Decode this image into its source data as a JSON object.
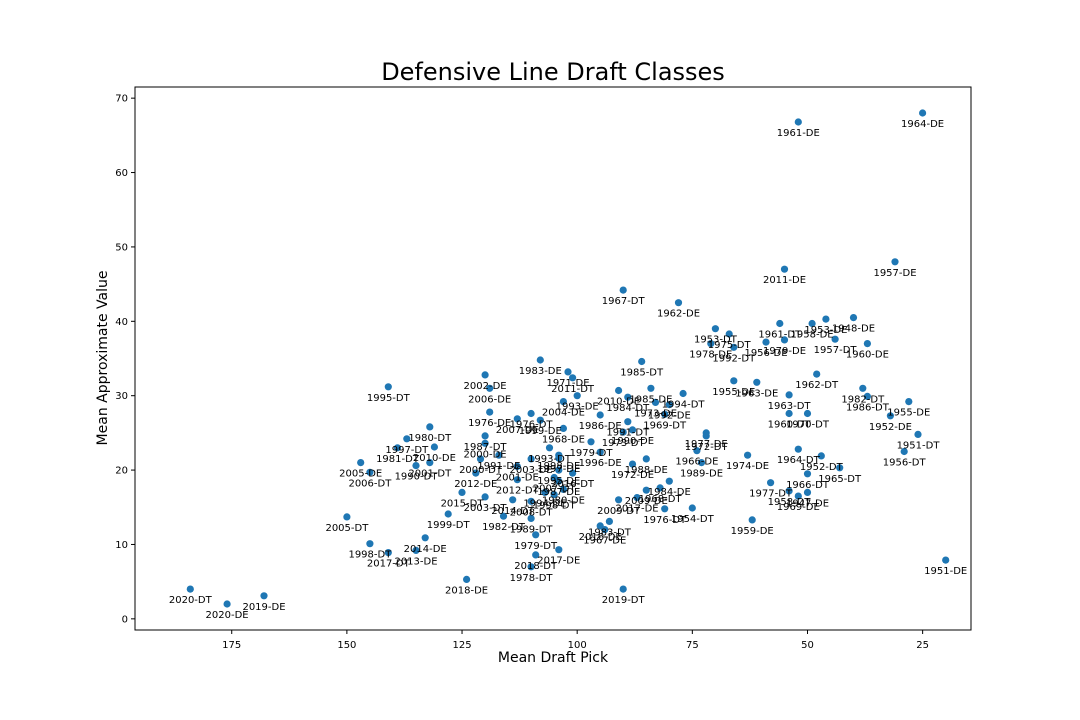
{
  "chart_data": {
    "type": "scatter",
    "title": "Defensive Line Draft Classes",
    "xlabel": "Mean Draft Pick",
    "ylabel": "Mean Approximate Value",
    "xlim": [
      196,
      14.5
    ],
    "ylim": [
      -1.5,
      71.5
    ],
    "x_inverted": true,
    "xticks": [
      175,
      150,
      125,
      100,
      75,
      50,
      25
    ],
    "yticks": [
      0,
      10,
      20,
      30,
      40,
      50,
      60,
      70
    ],
    "grid": false,
    "color": "#1f77b4",
    "points": [
      {
        "x": 52,
        "y": 66.8,
        "label": "1961-DE"
      },
      {
        "x": 25,
        "y": 68.0,
        "label": "1964-DE"
      },
      {
        "x": 31,
        "y": 48.0,
        "label": "1957-DE"
      },
      {
        "x": 55,
        "y": 47.0,
        "label": "2011-DE"
      },
      {
        "x": 90,
        "y": 44.2,
        "label": "1967-DT"
      },
      {
        "x": 78,
        "y": 42.5,
        "label": "1962-DE"
      },
      {
        "x": 40,
        "y": 40.5,
        "label": "1948-DE"
      },
      {
        "x": 46,
        "y": 40.3,
        "label": "1953-DE"
      },
      {
        "x": 49,
        "y": 39.7,
        "label": "1958-DE"
      },
      {
        "x": 56,
        "y": 39.7,
        "label": "1961-DT"
      },
      {
        "x": 70,
        "y": 39.0,
        "label": "1953-DT"
      },
      {
        "x": 67,
        "y": 38.3,
        "label": "1975-DT"
      },
      {
        "x": 44,
        "y": 37.6,
        "label": "1957-DT"
      },
      {
        "x": 37,
        "y": 37.0,
        "label": "1960-DE"
      },
      {
        "x": 59,
        "y": 37.2,
        "label": "1956-DE"
      },
      {
        "x": 55,
        "y": 37.5,
        "label": "1979-DE"
      },
      {
        "x": 71,
        "y": 37.0,
        "label": "1978-DE"
      },
      {
        "x": 66,
        "y": 36.5,
        "label": "1992-DT"
      },
      {
        "x": 108,
        "y": 34.8,
        "label": "1983-DE"
      },
      {
        "x": 86,
        "y": 34.6,
        "label": "1985-DT"
      },
      {
        "x": 48,
        "y": 32.9,
        "label": "1962-DT"
      },
      {
        "x": 102,
        "y": 33.2,
        "label": "1971-DE"
      },
      {
        "x": 120,
        "y": 32.8,
        "label": "2002-DE"
      },
      {
        "x": 101,
        "y": 32.4,
        "label": "2011-DT"
      },
      {
        "x": 66,
        "y": 32.0,
        "label": "1955-DE"
      },
      {
        "x": 61,
        "y": 31.8,
        "label": "1963-DE"
      },
      {
        "x": 141,
        "y": 31.2,
        "label": "1995-DT"
      },
      {
        "x": 119,
        "y": 31.0,
        "label": "2006-DE"
      },
      {
        "x": 38,
        "y": 31.0,
        "label": "1982-DT"
      },
      {
        "x": 37,
        "y": 29.9,
        "label": "1986-DT"
      },
      {
        "x": 84,
        "y": 31.0,
        "label": "1985-DE"
      },
      {
        "x": 91,
        "y": 30.7,
        "label": "2010-DE"
      },
      {
        "x": 77,
        "y": 30.3,
        "label": "1994-DT"
      },
      {
        "x": 100,
        "y": 30.0,
        "label": "1993-DE"
      },
      {
        "x": 89,
        "y": 29.8,
        "label": "1984-DT"
      },
      {
        "x": 54,
        "y": 30.1,
        "label": "1963-DT"
      },
      {
        "x": 103,
        "y": 29.2,
        "label": "2004-DE"
      },
      {
        "x": 83,
        "y": 29.1,
        "label": "1973-DE"
      },
      {
        "x": 80,
        "y": 28.8,
        "label": "1992-DE"
      },
      {
        "x": 28,
        "y": 29.2,
        "label": "1955-DE"
      },
      {
        "x": 119,
        "y": 27.8,
        "label": "1976-DE"
      },
      {
        "x": 110,
        "y": 27.6,
        "label": "1976-DT"
      },
      {
        "x": 95,
        "y": 27.4,
        "label": "1986-DE"
      },
      {
        "x": 81,
        "y": 27.5,
        "label": "1969-DT"
      },
      {
        "x": 54,
        "y": 27.6,
        "label": "1960-DT"
      },
      {
        "x": 50,
        "y": 27.6,
        "label": "1970-DT"
      },
      {
        "x": 32,
        "y": 27.3,
        "label": "1952-DE"
      },
      {
        "x": 113,
        "y": 26.9,
        "label": "2007-DE"
      },
      {
        "x": 108,
        "y": 26.7,
        "label": "1999-DE"
      },
      {
        "x": 89,
        "y": 26.5,
        "label": "1991-DT"
      },
      {
        "x": 132,
        "y": 25.8,
        "label": "1980-DT"
      },
      {
        "x": 103,
        "y": 25.6,
        "label": "1968-DE"
      },
      {
        "x": 90,
        "y": 25.1,
        "label": "1973-DT"
      },
      {
        "x": 88,
        "y": 25.4,
        "label": "1990-DE"
      },
      {
        "x": 72,
        "y": 25.0,
        "label": "1977-DE"
      },
      {
        "x": 72,
        "y": 24.6,
        "label": "1972-DT"
      },
      {
        "x": 120,
        "y": 24.6,
        "label": "1987-DT"
      },
      {
        "x": 137,
        "y": 24.2,
        "label": "1997-DT"
      },
      {
        "x": 26,
        "y": 24.8,
        "label": "1951-DT"
      },
      {
        "x": 97,
        "y": 23.8,
        "label": "1979-DT"
      },
      {
        "x": 120,
        "y": 23.6,
        "label": "2000-DE"
      },
      {
        "x": 106,
        "y": 23.0,
        "label": "1993-DT"
      },
      {
        "x": 139,
        "y": 23.0,
        "label": "1981-DT"
      },
      {
        "x": 131,
        "y": 23.1,
        "label": "2010-DE"
      },
      {
        "x": 74,
        "y": 22.6,
        "label": "1966-DE"
      },
      {
        "x": 95,
        "y": 22.4,
        "label": "1996-DE"
      },
      {
        "x": 117,
        "y": 22.0,
        "label": "1991-DE"
      },
      {
        "x": 104,
        "y": 22.0,
        "label": "1998-DE"
      },
      {
        "x": 121,
        "y": 21.5,
        "label": "2000-DT"
      },
      {
        "x": 85,
        "y": 21.5,
        "label": "1988-DE"
      },
      {
        "x": 104,
        "y": 21.6,
        "label": "1997-DE"
      },
      {
        "x": 110,
        "y": 21.5,
        "label": "2003-DE"
      },
      {
        "x": 63,
        "y": 22.0,
        "label": "1974-DE"
      },
      {
        "x": 29,
        "y": 22.5,
        "label": "1956-DT"
      },
      {
        "x": 52,
        "y": 22.8,
        "label": "1964-DT"
      },
      {
        "x": 147,
        "y": 21.0,
        "label": "2005-DE"
      },
      {
        "x": 132,
        "y": 21.0,
        "label": "2001-DT"
      },
      {
        "x": 88,
        "y": 20.8,
        "label": "1972-DE"
      },
      {
        "x": 47,
        "y": 21.9,
        "label": "1952-DT"
      },
      {
        "x": 135,
        "y": 20.6,
        "label": "1990-DT"
      },
      {
        "x": 73,
        "y": 21.0,
        "label": "1989-DE"
      },
      {
        "x": 43,
        "y": 20.3,
        "label": "1965-DT"
      },
      {
        "x": 113,
        "y": 20.5,
        "label": "2001-DE"
      },
      {
        "x": 145,
        "y": 19.7,
        "label": "2006-DT"
      },
      {
        "x": 122,
        "y": 19.6,
        "label": "2012-DE"
      },
      {
        "x": 104,
        "y": 20.0,
        "label": "1995-DE"
      },
      {
        "x": 101,
        "y": 19.6,
        "label": "2016-DT"
      },
      {
        "x": 85,
        "y": 17.3,
        "label": "2009-DE"
      },
      {
        "x": 105,
        "y": 19.0,
        "label": "2007-DT"
      },
      {
        "x": 113,
        "y": 18.7,
        "label": "2012-DT"
      },
      {
        "x": 80,
        "y": 18.5,
        "label": "1984-DE"
      },
      {
        "x": 82,
        "y": 17.6,
        "label": "1968-DT"
      },
      {
        "x": 104,
        "y": 18.5,
        "label": "1987-DE"
      },
      {
        "x": 58,
        "y": 18.3,
        "label": "1977-DT"
      },
      {
        "x": 50,
        "y": 19.5,
        "label": "1966-DT"
      },
      {
        "x": 125,
        "y": 17.0,
        "label": "2015-DT"
      },
      {
        "x": 107,
        "y": 17.0,
        "label": "1994-DE"
      },
      {
        "x": 120,
        "y": 16.4,
        "label": "2003-DT"
      },
      {
        "x": 103,
        "y": 17.4,
        "label": "1980-DE"
      },
      {
        "x": 105,
        "y": 16.7,
        "label": "1998-DT"
      },
      {
        "x": 91,
        "y": 16.0,
        "label": "2009-DT"
      },
      {
        "x": 87,
        "y": 16.3,
        "label": "2017-DE"
      },
      {
        "x": 54,
        "y": 17.2,
        "label": "1958-DT"
      },
      {
        "x": 50,
        "y": 17.0,
        "label": "1947-DE"
      },
      {
        "x": 52,
        "y": 16.5,
        "label": "1969-DE"
      },
      {
        "x": 114,
        "y": 16.0,
        "label": "2014-DT"
      },
      {
        "x": 110,
        "y": 15.8,
        "label": "2008-DT"
      },
      {
        "x": 81,
        "y": 14.8,
        "label": "1976-DT"
      },
      {
        "x": 75,
        "y": 14.9,
        "label": "1954-DT"
      },
      {
        "x": 128,
        "y": 14.1,
        "label": "1999-DT"
      },
      {
        "x": 116,
        "y": 13.8,
        "label": "1982-DT"
      },
      {
        "x": 110,
        "y": 13.5,
        "label": "1989-DT"
      },
      {
        "x": 62,
        "y": 13.3,
        "label": "1959-DE"
      },
      {
        "x": 150,
        "y": 13.7,
        "label": "2005-DT"
      },
      {
        "x": 93,
        "y": 13.1,
        "label": "1983-DT"
      },
      {
        "x": 95,
        "y": 12.5,
        "label": "2016-DE"
      },
      {
        "x": 109,
        "y": 11.3,
        "label": "1979-DT"
      },
      {
        "x": 133,
        "y": 10.9,
        "label": "2014-DE"
      },
      {
        "x": 94,
        "y": 12.0,
        "label": "1967-DE"
      },
      {
        "x": 145,
        "y": 10.1,
        "label": "1998-DT"
      },
      {
        "x": 135,
        "y": 9.2,
        "label": "2013-DE"
      },
      {
        "x": 141,
        "y": 8.9,
        "label": "2017-DT"
      },
      {
        "x": 104,
        "y": 9.3,
        "label": "2017-DE"
      },
      {
        "x": 109,
        "y": 8.6,
        "label": "2018-DT"
      },
      {
        "x": 110,
        "y": 7.0,
        "label": "1978-DT"
      },
      {
        "x": 124,
        "y": 5.3,
        "label": "2018-DE"
      },
      {
        "x": 20,
        "y": 7.9,
        "label": "1951-DE"
      },
      {
        "x": 184,
        "y": 4.0,
        "label": "2020-DT"
      },
      {
        "x": 176,
        "y": 2.0,
        "label": "2020-DE"
      },
      {
        "x": 168,
        "y": 3.1,
        "label": "2019-DE"
      },
      {
        "x": 90,
        "y": 4.0,
        "label": "2019-DT"
      }
    ]
  }
}
